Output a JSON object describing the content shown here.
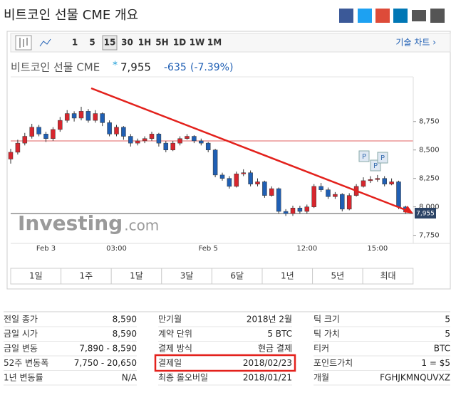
{
  "header": {
    "title": "비트코인 선물 CME 개요"
  },
  "toolbar": {
    "intervals": [
      "1",
      "5",
      "15",
      "30",
      "1H",
      "5H",
      "1D",
      "1W",
      "1M"
    ],
    "active_index": 2,
    "technical_link": "기술 차트 ›"
  },
  "quote": {
    "name": "비트코인 선물 CME",
    "marker": "*",
    "price": "7,955",
    "change": "-635",
    "change_pct": "(-7.39%)"
  },
  "chart_data": {
    "type": "candlestick",
    "categories": [
      null,
      null,
      null,
      null,
      null,
      "Feb 3",
      null,
      null,
      null,
      null,
      null,
      null,
      null,
      null,
      null,
      "03:00",
      null,
      null,
      null,
      null,
      null,
      null,
      null,
      null,
      null,
      null,
      null,
      null,
      "Feb 5",
      null,
      null,
      null,
      null,
      null,
      null,
      null,
      null,
      null,
      null,
      null,
      null,
      null,
      "12:00",
      null,
      null,
      null,
      null,
      null,
      null,
      null,
      null,
      null,
      "15:00",
      null,
      null,
      null,
      null
    ],
    "open": [
      8420,
      8480,
      8560,
      8620,
      8700,
      8640,
      8600,
      8680,
      8760,
      8820,
      8780,
      8840,
      8760,
      8820,
      8740,
      8640,
      8700,
      8620,
      8560,
      8580,
      8600,
      8640,
      8560,
      8500,
      8560,
      8600,
      8620,
      8580,
      8560,
      8500,
      8280,
      8250,
      8180,
      8290,
      8300,
      8200,
      8220,
      8100,
      8160,
      7960,
      7940,
      7990,
      7960,
      8000,
      8180,
      8150,
      8090,
      8110,
      7980,
      8100,
      8180,
      8230,
      8240,
      8250,
      8200,
      8220,
      8000
    ],
    "high": [
      8510,
      8590,
      8650,
      8730,
      8720,
      8660,
      8700,
      8790,
      8850,
      8840,
      8880,
      8860,
      8850,
      8830,
      8760,
      8720,
      8710,
      8640,
      8600,
      8620,
      8660,
      8650,
      8580,
      8580,
      8620,
      8640,
      8630,
      8600,
      8570,
      8510,
      8300,
      8270,
      8310,
      8330,
      8320,
      8250,
      8230,
      8180,
      8170,
      7980,
      8010,
      8010,
      8020,
      8200,
      8210,
      8170,
      8130,
      8120,
      8120,
      8200,
      8260,
      8270,
      8280,
      8270,
      8250,
      8230,
      8010
    ],
    "low": [
      8380,
      8460,
      8540,
      8600,
      8620,
      8570,
      8580,
      8660,
      8740,
      8750,
      8760,
      8740,
      8740,
      8710,
      8620,
      8620,
      8590,
      8530,
      8540,
      8560,
      8580,
      8530,
      8480,
      8490,
      8540,
      8590,
      8560,
      8540,
      8480,
      8260,
      8230,
      8160,
      8170,
      8270,
      8180,
      8180,
      8080,
      8090,
      7940,
      7920,
      7920,
      7940,
      7940,
      7990,
      8130,
      8070,
      8070,
      7960,
      7970,
      8090,
      8170,
      8210,
      8220,
      8180,
      8190,
      7980,
      7940
    ],
    "close": [
      8480,
      8560,
      8620,
      8700,
      8640,
      8600,
      8680,
      8760,
      8820,
      8780,
      8840,
      8760,
      8820,
      8740,
      8640,
      8700,
      8620,
      8560,
      8580,
      8600,
      8640,
      8560,
      8500,
      8560,
      8600,
      8620,
      8580,
      8560,
      8500,
      8280,
      8250,
      8180,
      8290,
      8300,
      8200,
      8220,
      8100,
      8160,
      7960,
      7940,
      7990,
      7960,
      8000,
      8180,
      8150,
      8090,
      8110,
      7980,
      8100,
      8180,
      8230,
      8240,
      8250,
      8200,
      8220,
      8000,
      7955
    ],
    "up_color": "#d7262e",
    "down_color": "#1f5fb4",
    "ylim": [
      7660,
      9130
    ],
    "yticks": [
      {
        "value": 7750,
        "label": "7,750"
      },
      {
        "value": 8000,
        "label": "8,000"
      },
      {
        "value": 8250,
        "label": "8,250"
      },
      {
        "value": 8500,
        "label": "8,500"
      },
      {
        "value": 8750,
        "label": "8,750"
      }
    ],
    "grid": false,
    "annotations": [
      "P",
      "P",
      "P"
    ],
    "watermark": {
      "brand": "Investing",
      "domain": ".com"
    }
  },
  "ranges": [
    "1일",
    "1주",
    "1달",
    "3달",
    "6달",
    "1년",
    "5년",
    "최대"
  ],
  "table": {
    "columns": [
      [
        [
          "전일 종가",
          "8,590"
        ],
        [
          "금일 시가",
          "8,590"
        ],
        [
          "금일 변동",
          "7,890 - 8,590"
        ],
        [
          "52주 변동폭",
          "7,750 - 20,650"
        ],
        [
          "1년 변동률",
          "N/A"
        ]
      ],
      [
        [
          "만기월",
          "2018년 2월"
        ],
        [
          "계약 단위",
          "5 BTC"
        ],
        [
          "결제 방식",
          "현금 결제"
        ],
        [
          "결제일",
          "2018/02/23"
        ],
        [
          "최종 롤오버일",
          "2018/01/21"
        ]
      ],
      [
        [
          "틱 크기",
          "5"
        ],
        [
          "틱 가치",
          "5"
        ],
        [
          "티커",
          "BTC"
        ],
        [
          "포인트가치",
          "1 = $5"
        ],
        [
          "개월",
          "FGHJKMNQUVXZ"
        ]
      ]
    ]
  }
}
